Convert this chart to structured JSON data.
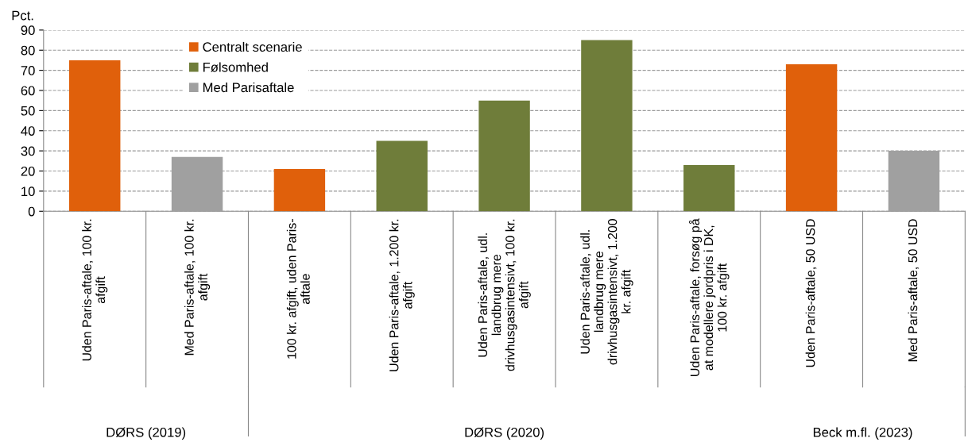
{
  "chart_data": {
    "type": "bar",
    "ylabel": "Pct.",
    "categories": [
      "Uden Paris-aftale, 100 kr.\nafgift",
      "Med Paris-aftale, 100 kr.\nafgift",
      "100 kr. afgift, uden Paris-\naftale",
      "Uden Paris-aftale, 1.200 kr.\nafgift",
      "Uden Paris-aftale, udl.\nlandbrug mere\ndrivhusgasintensivt, 100 kr.\nafgift",
      "Uden Paris-aftale, udl.\nlandbrug mere\ndrivhusgasintensivt, 1.200\nkr. afgift",
      "Uden Paris-aftale, forsøg på\nat modellere jordpris i DK,\n100 kr. afgift",
      "Uden Paris-aftale, 50 USD",
      "Med Paris-aftale, 50 USD"
    ],
    "series": [
      {
        "name": "Centralt scenarie",
        "color": "#e0600b",
        "values": [
          75,
          null,
          21,
          null,
          null,
          null,
          null,
          73,
          null
        ]
      },
      {
        "name": "Følsomhed",
        "color": "#6f7d3a",
        "values": [
          null,
          null,
          null,
          35,
          55,
          85,
          23,
          null,
          null
        ]
      },
      {
        "name": "Med Parisaftale",
        "color": "#a0a0a0",
        "values": [
          null,
          27,
          null,
          null,
          null,
          null,
          null,
          null,
          30
        ]
      }
    ],
    "ylim": [
      0,
      90
    ],
    "yticks": [
      0,
      10,
      20,
      30,
      40,
      50,
      60,
      70,
      80,
      90
    ],
    "grid": "y",
    "legend": "top left",
    "annotations": [
      "DØRS (2019)",
      "DØRS (2020)",
      "Beck m.fl. (2023)"
    ]
  }
}
